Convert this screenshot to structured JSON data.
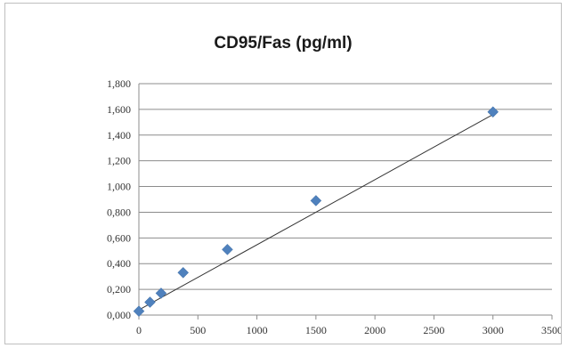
{
  "chart_data": {
    "type": "scatter",
    "title": "CD95/Fas (pg/ml)",
    "xlabel": "",
    "ylabel": "",
    "xlim": [
      0,
      3500
    ],
    "ylim": [
      0,
      1.8
    ],
    "x_ticks": [
      0,
      500,
      1000,
      1500,
      2000,
      2500,
      3000,
      3500
    ],
    "x_tick_labels": [
      "0",
      "500",
      "1000",
      "1500",
      "2000",
      "2500",
      "3000",
      "3500"
    ],
    "y_ticks": [
      0,
      0.2,
      0.4,
      0.6,
      0.8,
      1.0,
      1.2,
      1.4,
      1.6,
      1.8
    ],
    "y_tick_labels": [
      "0,000",
      "0,200",
      "0,400",
      "0,600",
      "0,800",
      "1,000",
      "1,200",
      "1,400",
      "1,600",
      "1,800"
    ],
    "grid": "horizontal",
    "legend": "none",
    "series": [
      {
        "x": [
          0,
          94,
          188,
          375,
          750,
          1500,
          3000
        ],
        "y": [
          0.03,
          0.1,
          0.17,
          0.33,
          0.51,
          0.89,
          1.58
        ]
      }
    ],
    "trendline": {
      "type": "linear",
      "x": [
        0,
        3000
      ],
      "y": [
        0.04,
        1.56
      ]
    },
    "colors": {
      "marker": "#4f81bd",
      "trendline": "#333333",
      "grid": "#8c8c8c"
    }
  }
}
